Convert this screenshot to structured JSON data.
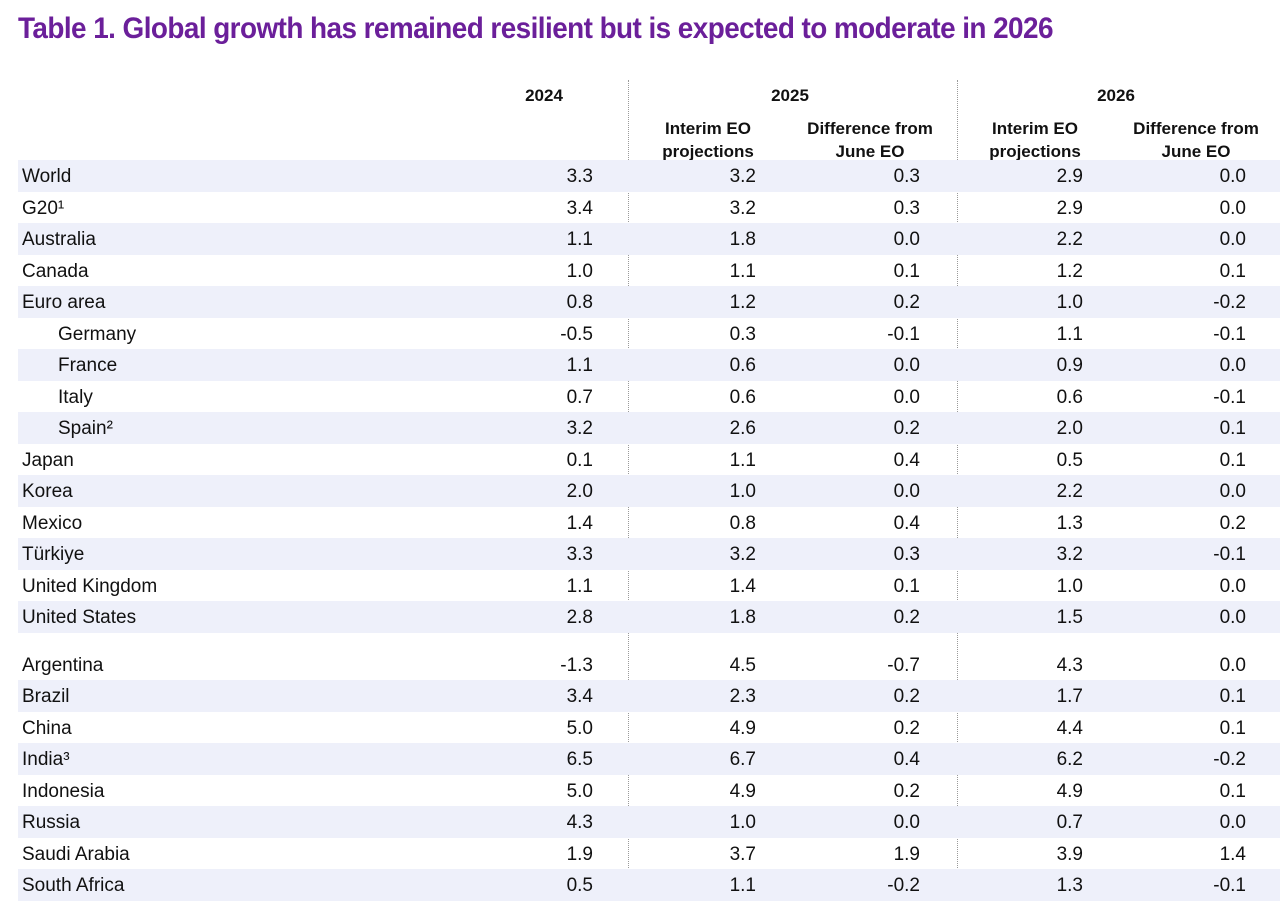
{
  "title": "Table 1. Global growth has remained resilient but is expected to moderate in 2026",
  "header": {
    "years": [
      "2024",
      "2025",
      "2026"
    ],
    "sub_2025": [
      "Interim EO\nprojections",
      "Difference from\nJune EO"
    ],
    "sub_2026": [
      "Interim EO\nprojections",
      "Difference from\nJune EO"
    ]
  },
  "rows": [
    {
      "name": "World",
      "v2024": "3.3",
      "p2025": "3.2",
      "d2025": "0.3",
      "p2026": "2.9",
      "d2026": "0.0"
    },
    {
      "name": "G20¹",
      "v2024": "3.4",
      "p2025": "3.2",
      "d2025": "0.3",
      "p2026": "2.9",
      "d2026": "0.0"
    },
    {
      "name": "Australia",
      "v2024": "1.1",
      "p2025": "1.8",
      "d2025": "0.0",
      "p2026": "2.2",
      "d2026": "0.0"
    },
    {
      "name": "Canada",
      "v2024": "1.0",
      "p2025": "1.1",
      "d2025": "0.1",
      "p2026": "1.2",
      "d2026": "0.1"
    },
    {
      "name": "Euro area",
      "v2024": "0.8",
      "p2025": "1.2",
      "d2025": "0.2",
      "p2026": "1.0",
      "d2026": "-0.2"
    },
    {
      "name": "Germany",
      "v2024": "-0.5",
      "p2025": "0.3",
      "d2025": "-0.1",
      "p2026": "1.1",
      "d2026": "-0.1"
    },
    {
      "name": "France",
      "v2024": "1.1",
      "p2025": "0.6",
      "d2025": "0.0",
      "p2026": "0.9",
      "d2026": "0.0"
    },
    {
      "name": "Italy",
      "v2024": "0.7",
      "p2025": "0.6",
      "d2025": "0.0",
      "p2026": "0.6",
      "d2026": "-0.1"
    },
    {
      "name": "Spain²",
      "v2024": "3.2",
      "p2025": "2.6",
      "d2025": "0.2",
      "p2026": "2.0",
      "d2026": "0.1"
    },
    {
      "name": "Japan",
      "v2024": "0.1",
      "p2025": "1.1",
      "d2025": "0.4",
      "p2026": "0.5",
      "d2026": "0.1"
    },
    {
      "name": "Korea",
      "v2024": "2.0",
      "p2025": "1.0",
      "d2025": "0.0",
      "p2026": "2.2",
      "d2026": "0.0"
    },
    {
      "name": "Mexico",
      "v2024": "1.4",
      "p2025": "0.8",
      "d2025": "0.4",
      "p2026": "1.3",
      "d2026": "0.2"
    },
    {
      "name": "Türkiye",
      "v2024": "3.3",
      "p2025": "3.2",
      "d2025": "0.3",
      "p2026": "3.2",
      "d2026": "-0.1"
    },
    {
      "name": "United Kingdom",
      "v2024": "1.1",
      "p2025": "1.4",
      "d2025": "0.1",
      "p2026": "1.0",
      "d2026": "0.0"
    },
    {
      "name": "United States",
      "v2024": "2.8",
      "p2025": "1.8",
      "d2025": "0.2",
      "p2026": "1.5",
      "d2026": "0.0"
    },
    {
      "name": "Argentina",
      "v2024": "-1.3",
      "p2025": "4.5",
      "d2025": "-0.7",
      "p2026": "4.3",
      "d2026": "0.0"
    },
    {
      "name": "Brazil",
      "v2024": "3.4",
      "p2025": "2.3",
      "d2025": "0.2",
      "p2026": "1.7",
      "d2026": "0.1"
    },
    {
      "name": "China",
      "v2024": "5.0",
      "p2025": "4.9",
      "d2025": "0.2",
      "p2026": "4.4",
      "d2026": "0.1"
    },
    {
      "name": "India³",
      "v2024": "6.5",
      "p2025": "6.7",
      "d2025": "0.4",
      "p2026": "6.2",
      "d2026": "-0.2"
    },
    {
      "name": "Indonesia",
      "v2024": "5.0",
      "p2025": "4.9",
      "d2025": "0.2",
      "p2026": "4.9",
      "d2026": "0.1"
    },
    {
      "name": "Russia",
      "v2024": "4.3",
      "p2025": "1.0",
      "d2025": "0.0",
      "p2026": "0.7",
      "d2026": "0.0"
    },
    {
      "name": "Saudi Arabia",
      "v2024": "1.9",
      "p2025": "3.7",
      "d2025": "1.9",
      "p2026": "3.9",
      "d2026": "1.4"
    },
    {
      "name": "South Africa",
      "v2024": "0.5",
      "p2025": "1.1",
      "d2025": "-0.2",
      "p2026": "1.3",
      "d2026": "-0.1"
    }
  ]
}
